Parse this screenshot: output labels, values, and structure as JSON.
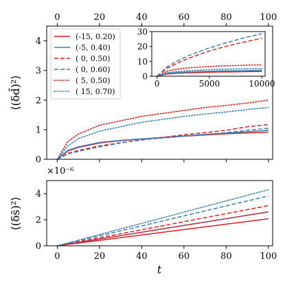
{
  "chart_data": [
    {
      "type": "line",
      "panel": "top",
      "ylabel": "⟨(δd̄)²⟩",
      "xlim": [
        -5,
        102
      ],
      "ylim": [
        0,
        4.5
      ],
      "xticks": [
        0,
        20,
        40,
        60,
        80,
        100
      ],
      "yticks": [
        0,
        1,
        2,
        3,
        4
      ],
      "xticks_position": "top",
      "legend_position": "top-left",
      "grid": false,
      "x": [
        0,
        5,
        10,
        20,
        30,
        40,
        50,
        60,
        70,
        80,
        90,
        100
      ],
      "series": [
        {
          "name": "(-15, 0.20)",
          "color": "#e41a1c",
          "style": "solid",
          "values": [
            0,
            0.28,
            0.4,
            0.55,
            0.63,
            0.68,
            0.73,
            0.78,
            0.82,
            0.86,
            0.89,
            0.92
          ]
        },
        {
          "name": "(-5, 0.40)",
          "color": "#377eb8",
          "style": "solid",
          "values": [
            0,
            0.3,
            0.42,
            0.57,
            0.64,
            0.69,
            0.74,
            0.79,
            0.84,
            0.88,
            0.93,
            0.98
          ]
        },
        {
          "name": "( 0, 0.50)",
          "color": "#e41a1c",
          "style": "dashed",
          "values": [
            0,
            0.2,
            0.3,
            0.45,
            0.56,
            0.65,
            0.74,
            0.83,
            0.9,
            0.98,
            1.1,
            1.17
          ]
        },
        {
          "name": "( 0, 0.60)",
          "color": "#377eb8",
          "style": "dashed",
          "values": [
            0,
            0.18,
            0.27,
            0.42,
            0.55,
            0.66,
            0.72,
            0.78,
            0.84,
            0.9,
            0.98,
            1.05
          ]
        },
        {
          "name": "( 5, 0.50)",
          "color": "#e41a1c",
          "style": "dotted",
          "values": [
            0,
            0.6,
            0.85,
            1.15,
            1.3,
            1.45,
            1.55,
            1.65,
            1.75,
            1.82,
            1.9,
            2.0
          ]
        },
        {
          "name": "( 15, 0.70)",
          "color": "#377eb8",
          "style": "dotted",
          "values": [
            0,
            0.45,
            0.7,
            0.95,
            1.1,
            1.25,
            1.35,
            1.45,
            1.53,
            1.6,
            1.68,
            1.75
          ]
        }
      ]
    },
    {
      "type": "line",
      "panel": "inset",
      "xlim": [
        -500,
        10300
      ],
      "ylim": [
        0,
        30
      ],
      "xticks": [
        0,
        5000,
        10000
      ],
      "yticks": [
        0,
        10,
        20,
        30
      ],
      "grid": false,
      "x": [
        0,
        1000,
        2000,
        3000,
        4000,
        5000,
        6000,
        7000,
        8000,
        9000,
        10000
      ],
      "series": [
        {
          "name": "(-15, 0.20)",
          "color": "#e41a1c",
          "style": "solid",
          "values": [
            0,
            1.5,
            2.0,
            2.3,
            2.5,
            2.7,
            2.8,
            2.9,
            3.0,
            3.1,
            3.2
          ]
        },
        {
          "name": "(-5, 0.40)",
          "color": "#377eb8",
          "style": "solid",
          "values": [
            0,
            1.8,
            2.4,
            2.8,
            3.1,
            3.3,
            3.5,
            3.6,
            3.7,
            3.8,
            3.9
          ]
        },
        {
          "name": "( 0, 0.50)",
          "color": "#e41a1c",
          "style": "dashed",
          "values": [
            0,
            5.5,
            9.0,
            12.0,
            14.5,
            17.0,
            19.0,
            20.8,
            22.5,
            24.0,
            25.5
          ]
        },
        {
          "name": "( 0, 0.60)",
          "color": "#377eb8",
          "style": "dashed",
          "values": [
            0,
            6.5,
            10.5,
            13.8,
            16.5,
            19.0,
            21.2,
            23.2,
            25.2,
            27.0,
            28.5
          ]
        },
        {
          "name": "( 5, 0.50)",
          "color": "#e41a1c",
          "style": "dotted",
          "values": [
            0,
            3.5,
            4.8,
            5.6,
            6.1,
            6.5,
            6.9,
            7.1,
            7.3,
            7.5,
            7.6
          ]
        },
        {
          "name": "( 15, 0.70)",
          "color": "#377eb8",
          "style": "dotted",
          "values": [
            0,
            2.3,
            3.2,
            3.7,
            4.1,
            4.4,
            4.6,
            4.8,
            4.9,
            5.0,
            5.1
          ]
        }
      ]
    },
    {
      "type": "line",
      "panel": "bottom",
      "xlabel": "t",
      "ylabel": "⟨(δs̄)²⟩",
      "scale_label": "×10⁻⁶",
      "xlim": [
        -5,
        102
      ],
      "ylim": [
        0,
        5
      ],
      "xticks": [
        0,
        20,
        40,
        60,
        80,
        100
      ],
      "yticks": [
        0,
        2,
        4
      ],
      "grid": false,
      "x": [
        0,
        100
      ],
      "series": [
        {
          "name": "(-15, 0.20)",
          "color": "#e41a1c",
          "style": "solid",
          "values": [
            0,
            2.07
          ]
        },
        {
          "name": "(-5, 0.40)",
          "color": "#377eb8",
          "style": "solid",
          "values": [
            0,
            2.6
          ]
        },
        {
          "name": "( 0, 0.50)",
          "color": "#e41a1c",
          "style": "dashed",
          "values": [
            0,
            3.08
          ]
        },
        {
          "name": "( 0, 0.60)",
          "color": "#377eb8",
          "style": "dashed",
          "values": [
            0,
            3.82
          ]
        },
        {
          "name": "( 5, 0.50)",
          "color": "#e41a1c",
          "style": "dotted",
          "values": [
            0,
            2.6
          ]
        },
        {
          "name": "( 15, 0.70)",
          "color": "#377eb8",
          "style": "dotted",
          "values": [
            0,
            4.3
          ]
        }
      ]
    }
  ]
}
